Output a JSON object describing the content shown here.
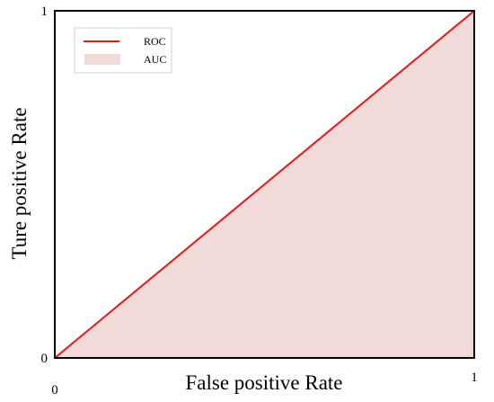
{
  "chart_data": {
    "type": "area",
    "x": [
      0,
      1
    ],
    "series": [
      {
        "name": "ROC",
        "kind": "line",
        "color": "#e31a1c",
        "values": [
          0,
          1
        ]
      },
      {
        "name": "AUC",
        "kind": "area",
        "color": "#f2dad8",
        "values": [
          0,
          1
        ]
      }
    ],
    "xlabel": "False positive Rate",
    "ylabel": "Ture positive Rate",
    "xlim": [
      0,
      1
    ],
    "ylim": [
      0,
      1
    ],
    "xticks": [
      "0",
      "1"
    ],
    "yticks": [
      "0",
      "1"
    ],
    "grid": false,
    "legend_position": "top-left"
  }
}
